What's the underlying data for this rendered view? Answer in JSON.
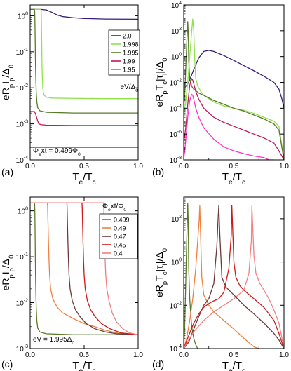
{
  "figure": {
    "panels": [
      "(a)",
      "(b)",
      "(c)",
      "(d)"
    ]
  },
  "chart_data": [
    {
      "id": "a",
      "panel_label": "(a)",
      "type": "line",
      "xlabel": "T_e/T_c",
      "ylabel": "eR_pI_p/Δ_0",
      "xlim": [
        0.0,
        1.0
      ],
      "ylim_log10": [
        -4,
        0.3
      ],
      "xticks": [
        "0.0",
        "0.5",
        "1.0"
      ],
      "yticks": [
        "10^-4",
        "10^-3",
        "10^-2",
        "10^-1",
        "10^0"
      ],
      "annotation": "Φ_ext = 0.499Φ_0",
      "legend_title": "eV/Δ_0",
      "legend_position": "right",
      "series": [
        {
          "name": "2.0",
          "color": "#3a1b78",
          "x": [
            0,
            0.1,
            0.15,
            0.2,
            0.25,
            0.3,
            0.4,
            0.5,
            0.7,
            1.0
          ],
          "y": [
            1.5,
            1.5,
            1.45,
            1.25,
            1.05,
            0.95,
            0.88,
            0.84,
            0.81,
            0.8
          ]
        },
        {
          "name": "1.998",
          "color": "#8ee34a",
          "x": [
            0,
            0.1,
            0.102,
            0.104,
            0.106,
            0.108,
            0.11,
            0.113,
            0.117,
            0.122,
            0.13,
            0.15,
            0.2,
            0.4,
            0.7,
            1.0
          ],
          "y": [
            1.5,
            1.5,
            1.3,
            0.8,
            0.3,
            0.1,
            0.04,
            0.018,
            0.01,
            0.0075,
            0.0062,
            0.0055,
            0.0052,
            0.0051,
            0.005,
            0.005
          ]
        },
        {
          "name": "1.995",
          "color": "#5a7a2a",
          "x": [
            0,
            0.04,
            0.042,
            0.044,
            0.046,
            0.048,
            0.05,
            0.053,
            0.057,
            0.062,
            0.07,
            0.09,
            0.15,
            0.4,
            1.0
          ],
          "y": [
            1.5,
            1.5,
            1.3,
            0.8,
            0.3,
            0.1,
            0.04,
            0.015,
            0.007,
            0.004,
            0.0028,
            0.0023,
            0.0021,
            0.002,
            0.002
          ]
        },
        {
          "name": "1.99",
          "color": "#c2185b",
          "x": [
            0,
            0.02,
            0.04,
            0.05,
            0.06,
            0.07,
            0.08,
            0.1,
            0.15,
            0.4,
            1.0
          ],
          "y": [
            0.0022,
            0.0022,
            0.0022,
            0.0019,
            0.0015,
            0.0012,
            0.001,
            0.00095,
            0.00092,
            0.0009,
            0.0009
          ]
        },
        {
          "name": "1.95",
          "color": "#ff33cc",
          "x": [
            0,
            0.1,
            0.4,
            0.7,
            1.0
          ],
          "y": [
            0.00022,
            0.00022,
            0.00022,
            0.00022,
            0.00022
          ]
        }
      ]
    },
    {
      "id": "b",
      "panel_label": "(b)",
      "type": "line",
      "xlabel": "T_e/T_c",
      "ylabel": "eR_pT_c|τ_i|/Δ_0",
      "xlim": [
        0.0,
        1.0
      ],
      "ylim_log10": [
        -8,
        4
      ],
      "xticks": [
        "0.0",
        "0.5",
        "1.0"
      ],
      "yticks": [
        "10^-8",
        "10^-6",
        "10^-4",
        "10^-2",
        "10^0",
        "10^2",
        "10^4"
      ],
      "series": [
        {
          "name": "2.0",
          "color": "#3a1b78",
          "x": [
            0.0,
            0.05,
            0.1,
            0.15,
            0.2,
            0.25,
            0.3,
            0.4,
            0.5,
            0.6,
            0.7,
            0.8,
            0.9,
            0.95,
            0.98,
            1.0
          ],
          "y": [
            0.003,
            0.01,
            0.1,
            0.8,
            2.5,
            3,
            2.5,
            1.2,
            0.5,
            0.2,
            0.08,
            0.03,
            0.01,
            0.003,
            0.0005,
            0.0001
          ]
        },
        {
          "name": "1.998",
          "color": "#8ee34a",
          "x": [
            0.0,
            0.02,
            0.04,
            0.06,
            0.08,
            0.09,
            0.1,
            0.11,
            0.12,
            0.14,
            0.17,
            0.2,
            0.3,
            0.4,
            0.5,
            0.6,
            0.7,
            0.8,
            0.9,
            0.95,
            1.0
          ],
          "y": [
            3e-05,
            0.0003,
            0.01,
            1,
            100,
            800,
            100,
            0.5,
            0.02,
            0.005,
            0.002,
            0.001,
            0.0003,
            0.00015,
            0.0001,
            7e-05,
            4e-05,
            2e-05,
            1e-05,
            4e-06,
            1e-08
          ]
        },
        {
          "name": "1.995",
          "color": "#5a7a2a",
          "x": [
            0.0,
            0.01,
            0.02,
            0.03,
            0.04,
            0.045,
            0.05,
            0.06,
            0.08,
            0.1,
            0.15,
            0.2,
            0.3,
            0.4,
            0.5,
            0.6,
            0.7,
            0.8,
            0.9,
            0.95,
            1.0
          ],
          "y": [
            0.0001,
            0.001,
            0.1,
            10,
            500,
            80,
            0.5,
            0.02,
            0.005,
            0.003,
            0.0015,
            0.001,
            0.0004,
            0.0002,
            0.0001,
            6e-05,
            3e-05,
            1.5e-05,
            6e-06,
            2e-06,
            1e-08
          ]
        },
        {
          "name": "1.99",
          "color": "#c2185b",
          "x": [
            0.0,
            0.02,
            0.04,
            0.06,
            0.08,
            0.09,
            0.1,
            0.12,
            0.15,
            0.2,
            0.3,
            0.4,
            0.5,
            0.6,
            0.7,
            0.8,
            0.9,
            0.95,
            1.0
          ],
          "y": [
            2e-07,
            3e-06,
            0.0002,
            0.006,
            0.02,
            0.015,
            0.008,
            0.002,
            0.0005,
            0.0001,
            2e-05,
            8e-06,
            4e-06,
            2e-06,
            1e-06,
            5e-07,
            2e-07,
            5e-08,
            1e-08
          ]
        },
        {
          "name": "1.95",
          "color": "#ff33cc",
          "x": [
            0.0,
            0.02,
            0.04,
            0.06,
            0.08,
            0.09,
            0.1,
            0.12,
            0.15,
            0.2,
            0.3,
            0.4,
            0.5,
            0.6,
            0.7,
            0.8,
            0.85,
            0.9
          ],
          "y": [
            1e-08,
            3e-07,
            2e-05,
            0.0004,
            0.0012,
            0.001,
            0.0005,
            0.0001,
            2e-05,
            3e-06,
            4e-07,
            1e-07,
            5e-08,
            3e-08,
            2e-08,
            1.5e-08,
            1e-08,
            1e-08
          ]
        }
      ]
    },
    {
      "id": "c",
      "panel_label": "(c)",
      "type": "line",
      "xlabel": "T_e/T_c",
      "ylabel": "eR_pI_p/Δ_0",
      "xlim": [
        0.0,
        1.0
      ],
      "ylim_log10": [
        -3,
        0.3
      ],
      "xticks": [
        "0.0",
        "0.5",
        "1.0"
      ],
      "yticks": [
        "10^-3",
        "10^-2",
        "10^-1",
        "10^0"
      ],
      "annotation": "eV = 1.995Δ_0",
      "legend_title": "Φ_ext/Φ_0",
      "legend_position": "right",
      "series": [
        {
          "name": "0.499",
          "color": "#5a7a2a",
          "x": [
            0,
            0.04,
            0.042,
            0.044,
            0.046,
            0.048,
            0.05,
            0.053,
            0.057,
            0.062,
            0.07,
            0.09,
            0.15,
            0.4,
            1.0
          ],
          "y": [
            1.5,
            1.5,
            1.3,
            0.8,
            0.3,
            0.1,
            0.04,
            0.015,
            0.007,
            0.004,
            0.0028,
            0.0023,
            0.0021,
            0.002,
            0.002
          ]
        },
        {
          "name": "0.49",
          "color": "#f08040",
          "x": [
            0,
            0.16,
            0.162,
            0.165,
            0.17,
            0.175,
            0.18,
            0.19,
            0.21,
            0.25,
            0.3,
            0.4,
            0.5,
            0.6,
            0.7,
            0.8,
            1.0
          ],
          "y": [
            1.5,
            1.5,
            1.2,
            0.6,
            0.2,
            0.08,
            0.04,
            0.02,
            0.012,
            0.008,
            0.006,
            0.0045,
            0.0035,
            0.003,
            0.0025,
            0.0022,
            0.002
          ]
        },
        {
          "name": "0.47",
          "color": "#6b3a3a",
          "x": [
            0,
            0.34,
            0.342,
            0.345,
            0.35,
            0.355,
            0.36,
            0.37,
            0.39,
            0.42,
            0.46,
            0.52,
            0.6,
            0.7,
            0.8,
            1.0
          ],
          "y": [
            1.5,
            1.5,
            1.2,
            0.6,
            0.2,
            0.08,
            0.04,
            0.02,
            0.011,
            0.007,
            0.005,
            0.0035,
            0.0027,
            0.0023,
            0.0021,
            0.002
          ]
        },
        {
          "name": "0.45",
          "color": "#d01818",
          "x": [
            0,
            0.48,
            0.482,
            0.485,
            0.49,
            0.495,
            0.5,
            0.51,
            0.53,
            0.56,
            0.6,
            0.66,
            0.74,
            0.84,
            1.0
          ],
          "y": [
            1.5,
            1.5,
            1.2,
            0.6,
            0.2,
            0.08,
            0.04,
            0.02,
            0.011,
            0.007,
            0.005,
            0.0035,
            0.0027,
            0.0022,
            0.002
          ]
        },
        {
          "name": "0.4",
          "color": "#f28080",
          "x": [
            0,
            0.68,
            0.682,
            0.685,
            0.69,
            0.695,
            0.7,
            0.71,
            0.73,
            0.76,
            0.8,
            0.86,
            0.92,
            1.0
          ],
          "y": [
            1.5,
            1.5,
            1.2,
            0.6,
            0.2,
            0.08,
            0.04,
            0.02,
            0.011,
            0.006,
            0.0038,
            0.0027,
            0.0022,
            0.002
          ]
        }
      ]
    },
    {
      "id": "d",
      "panel_label": "(d)",
      "type": "line",
      "xlabel": "T_e/T_c",
      "ylabel": "eR_pT_c|τ_i|/Δ_0",
      "xlim": [
        0.0,
        1.0
      ],
      "ylim_log10": [
        -4,
        3
      ],
      "xticks": [
        "0.0",
        "0.5",
        "1.0"
      ],
      "yticks": [
        "10^-4",
        "10^-2",
        "10^0",
        "10^2"
      ],
      "series": [
        {
          "name": "0.499",
          "color": "#5a7a2a",
          "x": [
            0.0,
            0.01,
            0.02,
            0.03,
            0.04,
            0.045,
            0.05,
            0.06,
            0.07,
            0.08,
            0.1,
            0.12,
            0.15,
            0.18
          ],
          "y": [
            0.0001,
            0.001,
            0.1,
            10,
            500,
            80,
            0.5,
            0.02,
            0.004,
            0.001,
            0.0003,
            0.00015,
            8e-05,
            0.0001
          ]
        },
        {
          "name": "0.49",
          "color": "#f08040",
          "x": [
            0.0,
            0.03,
            0.06,
            0.09,
            0.12,
            0.14,
            0.155,
            0.16,
            0.165,
            0.18,
            0.2,
            0.25,
            0.3,
            0.4,
            0.5,
            0.6,
            0.7,
            0.75
          ],
          "y": [
            0.0001,
            0.0003,
            0.002,
            0.02,
            0.5,
            10,
            100,
            400,
            60,
            0.2,
            0.03,
            0.01,
            0.005,
            0.002,
            0.0008,
            0.0003,
            0.00012,
            0.0001
          ]
        },
        {
          "name": "0.47",
          "color": "#6b3a3a",
          "x": [
            0.0,
            0.05,
            0.1,
            0.15,
            0.2,
            0.25,
            0.3,
            0.33,
            0.345,
            0.35,
            0.36,
            0.38,
            0.42,
            0.5,
            0.6,
            0.7,
            0.8,
            0.9,
            0.95,
            1.0
          ],
          "y": [
            0.0001,
            0.0002,
            0.0008,
            0.003,
            0.01,
            0.02,
            0.1,
            5,
            150,
            400,
            20,
            0.2,
            0.07,
            0.03,
            0.01,
            0.004,
            0.0015,
            0.0005,
            0.00025,
            0.0001
          ]
        },
        {
          "name": "0.45",
          "color": "#d01818",
          "x": [
            0.0,
            0.05,
            0.1,
            0.15,
            0.2,
            0.25,
            0.3,
            0.35,
            0.4,
            0.45,
            0.475,
            0.48,
            0.49,
            0.5,
            0.52,
            0.56,
            0.6,
            0.7,
            0.8,
            0.9,
            0.95,
            1.0
          ],
          "y": [
            0.0001,
            0.0004,
            0.0015,
            0.004,
            0.008,
            0.012,
            0.016,
            0.02,
            0.04,
            0.5,
            20,
            400,
            20,
            1,
            0.2,
            0.08,
            0.05,
            0.02,
            0.008,
            0.002,
            0.0005,
            0.0001
          ]
        },
        {
          "name": "0.4",
          "color": "#f28080",
          "x": [
            0.0,
            0.05,
            0.1,
            0.2,
            0.3,
            0.4,
            0.5,
            0.6,
            0.65,
            0.675,
            0.68,
            0.69,
            0.7,
            0.72,
            0.76,
            0.8,
            0.85,
            0.9,
            0.95,
            1.0
          ],
          "y": [
            0.0001,
            0.00025,
            0.0006,
            0.002,
            0.005,
            0.01,
            0.02,
            0.05,
            0.3,
            10,
            400,
            30,
            2,
            0.3,
            0.1,
            0.05,
            0.02,
            0.006,
            0.0015,
            0.0001
          ]
        }
      ]
    }
  ]
}
